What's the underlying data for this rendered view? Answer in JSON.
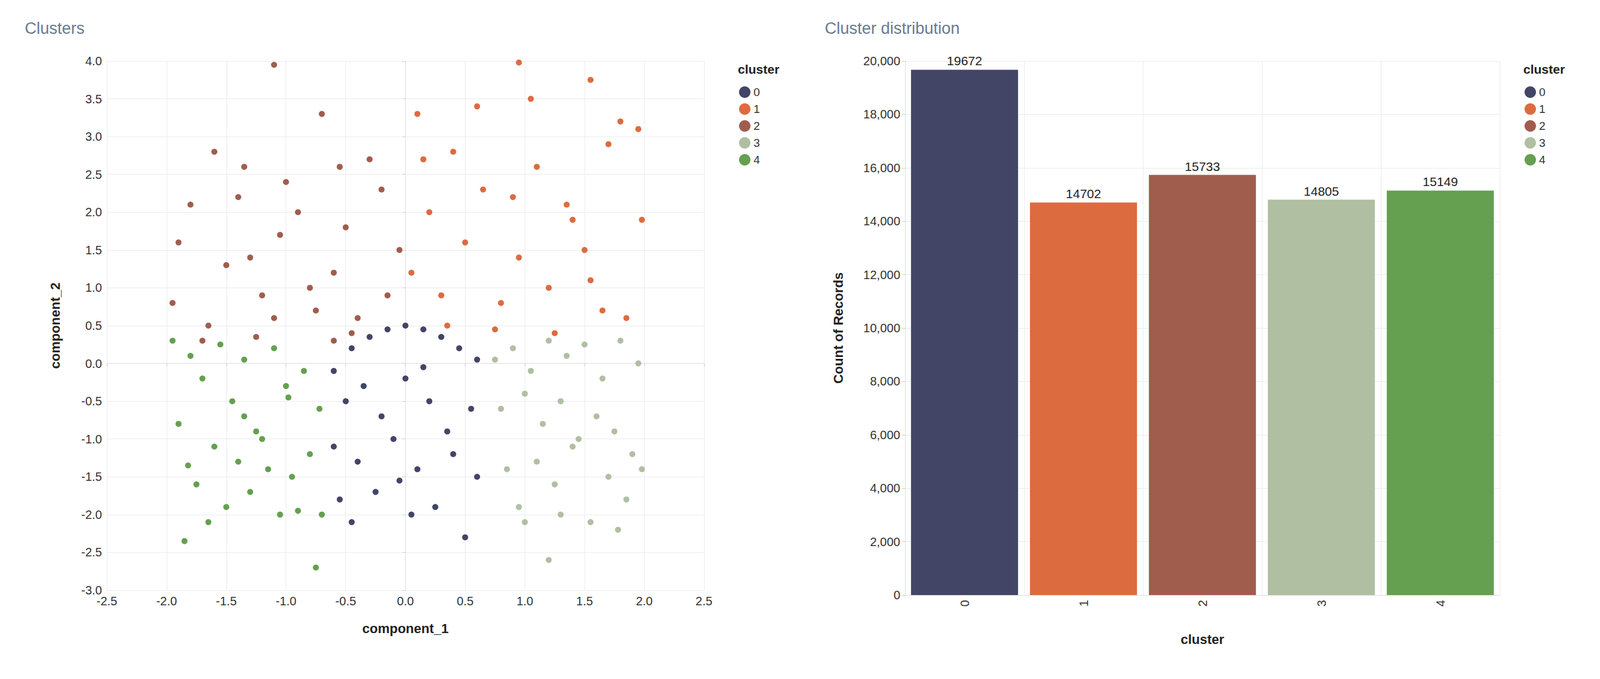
{
  "chart_data": [
    {
      "type": "scatter",
      "title": "Clusters",
      "x_label": "component_1",
      "y_label": "component_2",
      "legend_title": "cluster",
      "legend": "right",
      "grid": true,
      "xlim": [
        -2.5,
        2.5
      ],
      "xticks": [
        -2.5,
        {
          "value": -2,
          "label": "-2.0"
        },
        -1.5,
        {
          "value": -1,
          "label": "-1.0"
        },
        -0.5,
        {
          "value": 0,
          "label": "0.0"
        },
        0.5,
        {
          "value": 1,
          "label": "1.0"
        },
        1.5,
        {
          "value": 2,
          "label": "2.0"
        },
        2.5
      ],
      "ylim": [
        -3,
        4
      ],
      "yticks": [
        {
          "value": -3,
          "label": "-3.0"
        },
        -2.5,
        {
          "value": -2,
          "label": "-2.0"
        },
        -1.5,
        {
          "value": -1,
          "label": "-1.0"
        },
        -0.5,
        {
          "value": 0,
          "label": "0.0"
        },
        0.5,
        {
          "value": 1,
          "label": "1.0"
        },
        1.5,
        {
          "value": 2,
          "label": "2.0"
        },
        2.5,
        {
          "value": 3,
          "label": "3.0"
        },
        3.5,
        {
          "value": 4,
          "label": "4.0"
        }
      ],
      "series": [
        {
          "name": "0",
          "color": "#424566",
          "x": [
            -0.6,
            -0.45,
            -0.3,
            -0.15,
            0,
            0.15,
            0.3,
            0.45,
            0.6,
            -0.5,
            -0.35,
            -0.2,
            0,
            0.2,
            0.35,
            0.55,
            -0.6,
            -0.4,
            -0.1,
            0.1,
            0.4,
            0.6,
            -0.55,
            -0.25,
            0.05,
            0.25,
            0.5,
            -0.45,
            0.15,
            -0.05
          ],
          "values": [
            -0.1,
            0.2,
            0.35,
            0.45,
            0.5,
            0.45,
            0.35,
            0.2,
            0.05,
            -0.5,
            -0.3,
            -0.7,
            -0.2,
            -0.5,
            -0.9,
            -0.6,
            -1.1,
            -1.3,
            -1.0,
            -1.4,
            -1.2,
            -1.5,
            -1.8,
            -1.7,
            -2.0,
            -1.9,
            -2.3,
            -2.1,
            -0.05,
            -1.55
          ]
        },
        {
          "name": "1",
          "color": "#dd6b40",
          "x": [
            0.05,
            0.2,
            0.35,
            0.5,
            0.65,
            0.8,
            0.95,
            1.1,
            1.25,
            1.4,
            1.55,
            1.7,
            1.85,
            1.98,
            0.1,
            0.3,
            0.6,
            0.9,
            1.2,
            1.5,
            1.8,
            0.4,
            0.75,
            1.05,
            1.35,
            1.65,
            1.95,
            0.95,
            1.55,
            0.15
          ],
          "values": [
            1.2,
            2.0,
            0.5,
            1.6,
            2.3,
            0.8,
            1.4,
            2.6,
            0.4,
            1.9,
            1.1,
            2.9,
            0.6,
            1.9,
            3.3,
            0.9,
            3.4,
            2.2,
            1.0,
            1.5,
            3.2,
            2.8,
            0.45,
            3.5,
            2.1,
            0.7,
            3.1,
            3.98,
            3.75,
            2.7
          ]
        },
        {
          "name": "2",
          "color": "#a05d4e",
          "x": [
            -1.95,
            -1.8,
            -1.65,
            -1.5,
            -1.35,
            -1.2,
            -1.05,
            -0.9,
            -0.75,
            -0.6,
            -0.45,
            -0.3,
            -0.15,
            -0.05,
            -1.9,
            -1.7,
            -1.4,
            -1.1,
            -0.8,
            -0.5,
            -0.2,
            -1.6,
            -1.3,
            -1.0,
            -0.7,
            -0.4,
            -1.25,
            -0.55,
            -1.1,
            -0.6
          ],
          "values": [
            0.8,
            2.1,
            0.5,
            1.3,
            2.6,
            0.9,
            1.7,
            2.0,
            0.7,
            1.2,
            0.4,
            2.7,
            0.9,
            1.5,
            1.6,
            0.3,
            2.2,
            0.6,
            1.0,
            1.8,
            2.3,
            2.8,
            1.4,
            2.4,
            3.3,
            0.6,
            0.35,
            2.6,
            3.95,
            0.3
          ]
        },
        {
          "name": "3",
          "color": "#b0bfa2",
          "x": [
            0.75,
            0.9,
            1.05,
            1.2,
            1.35,
            1.5,
            1.65,
            1.8,
            1.95,
            0.8,
            1.0,
            1.15,
            1.3,
            1.45,
            1.6,
            1.75,
            1.9,
            0.85,
            1.1,
            1.25,
            1.4,
            1.7,
            1.85,
            0.95,
            1.55,
            1.3,
            1.0,
            1.2,
            1.78,
            1.98
          ],
          "values": [
            0.05,
            0.2,
            -0.1,
            0.3,
            0.1,
            0.25,
            -0.2,
            0.3,
            0.0,
            -0.6,
            -0.4,
            -0.8,
            -0.5,
            -1.0,
            -0.7,
            -0.9,
            -1.2,
            -1.4,
            -1.3,
            -1.6,
            -1.1,
            -1.5,
            -1.8,
            -1.9,
            -2.1,
            -2.0,
            -2.1,
            -2.6,
            -2.2,
            -1.4
          ]
        },
        {
          "name": "4",
          "color": "#64a050",
          "x": [
            -1.95,
            -1.8,
            -1.7,
            -1.55,
            -1.45,
            -1.35,
            -1.25,
            -1.1,
            -1.0,
            -0.85,
            -0.72,
            -1.9,
            -1.6,
            -1.4,
            -1.2,
            -0.95,
            -0.8,
            -1.75,
            -1.5,
            -1.3,
            -1.05,
            -0.9,
            -0.7,
            -1.85,
            -1.65,
            -1.35,
            -1.15,
            -1.82,
            -0.98,
            -0.75
          ],
          "values": [
            0.3,
            0.1,
            -0.2,
            0.25,
            -0.5,
            0.05,
            -0.9,
            0.2,
            -0.3,
            -0.1,
            -0.6,
            -0.8,
            -1.1,
            -1.3,
            -1.0,
            -1.5,
            -1.2,
            -1.6,
            -1.9,
            -1.7,
            -2.0,
            -1.95,
            -2.0,
            -2.35,
            -2.1,
            -0.7,
            -1.4,
            -1.35,
            -0.45,
            -2.7
          ]
        }
      ]
    },
    {
      "type": "bar",
      "title": "Cluster distribution",
      "x_label": "cluster",
      "y_label": "Count of Records",
      "legend_title": "cluster",
      "legend": "right",
      "grid": true,
      "data_labels": true,
      "categories": [
        "0",
        "1",
        "2",
        "3",
        "4"
      ],
      "values": [
        19672,
        14702,
        15733,
        14805,
        15149
      ],
      "colors": [
        "#424566",
        "#dd6b40",
        "#a05d4e",
        "#b0bfa2",
        "#64a050"
      ],
      "ylim": [
        0,
        20000
      ],
      "yticks": [
        0,
        {
          "value": 2000,
          "label": "2,000"
        },
        {
          "value": 4000,
          "label": "4,000"
        },
        {
          "value": 6000,
          "label": "6,000"
        },
        {
          "value": 8000,
          "label": "8,000"
        },
        {
          "value": 10000,
          "label": "10,000"
        },
        {
          "value": 12000,
          "label": "12,000"
        },
        {
          "value": 14000,
          "label": "14,000"
        },
        {
          "value": 16000,
          "label": "16,000"
        },
        {
          "value": 18000,
          "label": "18,000"
        },
        {
          "value": 20000,
          "label": "20,000"
        }
      ]
    }
  ]
}
